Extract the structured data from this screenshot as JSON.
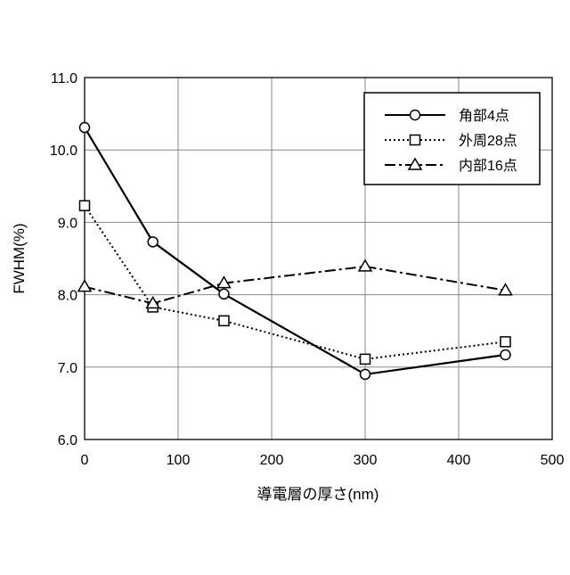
{
  "chart_data": {
    "type": "line",
    "title": "",
    "xlabel": "導電層の厚さ(nm)",
    "ylabel": "FWHM(%)",
    "xlim": [
      0,
      500
    ],
    "ylim": [
      6.0,
      11.0
    ],
    "xticks": [
      "0",
      "100",
      "200",
      "300",
      "400",
      "500"
    ],
    "xtick_values": [
      0,
      100,
      200,
      300,
      400,
      500
    ],
    "yticks": [
      "6.0",
      "7.0",
      "8.0",
      "9.0",
      "10.0",
      "11.0"
    ],
    "ytick_values": [
      6,
      7,
      8,
      9,
      10,
      11
    ],
    "grid": true,
    "legend_position": "top-right",
    "x": [
      0,
      73,
      149,
      300,
      450
    ],
    "series": [
      {
        "name": "角部4点",
        "marker": "circle",
        "line": "solid",
        "values": [
          10.31,
          8.73,
          8.01,
          6.9,
          7.17
        ]
      },
      {
        "name": "外周28点",
        "marker": "square",
        "line": "dotted",
        "values": [
          9.23,
          7.83,
          7.64,
          7.11,
          7.35
        ]
      },
      {
        "name": "内部16点",
        "marker": "triangle",
        "line": "dash-dot",
        "values": [
          8.11,
          7.88,
          8.16,
          8.39,
          8.06
        ]
      }
    ]
  }
}
